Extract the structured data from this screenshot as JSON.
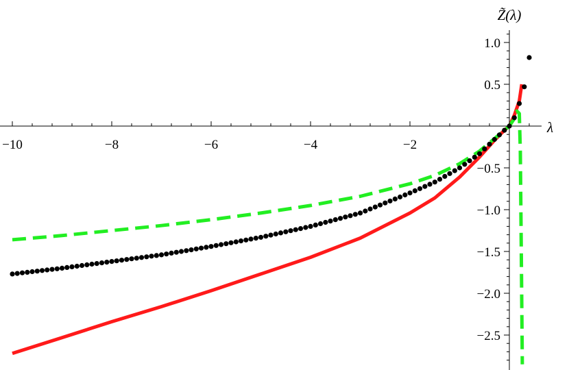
{
  "chart_data": {
    "type": "line",
    "title": "",
    "xlabel": "λ",
    "ylabel": "Z̃(λ)",
    "xlim": [
      -10.0,
      0.6
    ],
    "ylim": [
      -2.85,
      1.15
    ],
    "xticks": [
      -10,
      -8,
      -6,
      -4,
      -2
    ],
    "xtick_labels": [
      "−10",
      "−8",
      "−6",
      "−4",
      "−2"
    ],
    "yticks": [
      1.0,
      0.5,
      -0.5,
      -1.0,
      -1.5,
      -2.0,
      -2.5
    ],
    "ytick_labels": [
      "1.0",
      "0.5",
      "−0.5",
      "−1.0",
      "−1.5",
      "−2.0",
      "−2.5"
    ],
    "grid": false,
    "series": [
      {
        "style": "solid",
        "color": "#ff1a1a",
        "x": [
          -10,
          -9,
          -8,
          -7,
          -6,
          -5,
          -4,
          -3,
          -2,
          -1.5,
          -1,
          -0.6,
          -0.3,
          -0.1,
          0,
          0.1,
          0.2,
          0.25
        ],
        "y": [
          -2.72,
          -2.53,
          -2.34,
          -2.16,
          -1.97,
          -1.77,
          -1.57,
          -1.34,
          -1.04,
          -0.86,
          -0.61,
          -0.37,
          -0.17,
          -0.05,
          0.0,
          0.13,
          0.3,
          0.5
        ]
      },
      {
        "style": "dashed",
        "color": "#22ee22",
        "x": [
          -10,
          -9,
          -8,
          -7,
          -6,
          -5,
          -4,
          -3,
          -2,
          -1.5,
          -1,
          -0.6,
          -0.3,
          -0.1,
          0,
          0.1,
          0.15,
          0.2,
          0.22,
          0.24,
          0.26
        ],
        "y": [
          -1.36,
          -1.31,
          -1.25,
          -1.19,
          -1.12,
          -1.04,
          -0.95,
          -0.84,
          -0.69,
          -0.59,
          -0.45,
          -0.3,
          -0.15,
          -0.05,
          0.0,
          0.09,
          0.18,
          0.15,
          -0.3,
          -1.5,
          -2.85
        ]
      },
      {
        "style": "points",
        "color": "#000000",
        "x_start": -10.0,
        "x_step": 0.1,
        "x_end": 0.3,
        "curve_x": [
          -10,
          -9,
          -8,
          -7,
          -6,
          -5,
          -4,
          -3,
          -2,
          -1.5,
          -1,
          -0.6,
          -0.3,
          -0.1,
          0,
          0.1,
          0.2,
          0.3
        ],
        "curve_y": [
          -1.77,
          -1.7,
          -1.62,
          -1.54,
          -1.44,
          -1.33,
          -1.2,
          -1.04,
          -0.8,
          -0.67,
          -0.5,
          -0.33,
          -0.16,
          -0.05,
          0.0,
          0.1,
          0.27,
          0.47
        ],
        "extra_points": [
          {
            "x": 0.4,
            "y": 0.82
          }
        ]
      }
    ]
  }
}
